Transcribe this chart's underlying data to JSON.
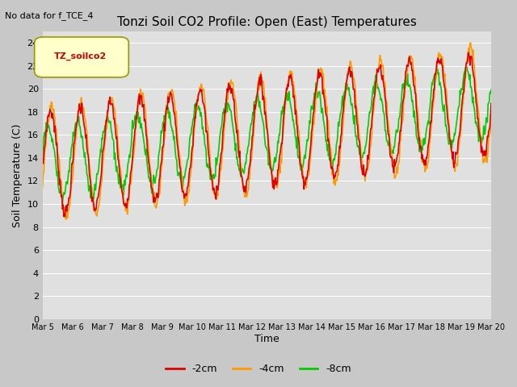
{
  "title": "Tonzi Soil CO2 Profile: Open (East) Temperatures",
  "subtitle": "No data for f_TCE_4",
  "ylabel": "Soil Temperature (C)",
  "xlabel": "Time",
  "legend_label": "TZ_soilco2",
  "ylim": [
    0,
    25
  ],
  "yticks": [
    0,
    2,
    4,
    6,
    8,
    10,
    12,
    14,
    16,
    18,
    20,
    22,
    24
  ],
  "x_labels": [
    "Mar 5",
    "Mar 6",
    "Mar 7",
    "Mar 8",
    "Mar 9",
    "Mar 10",
    "Mar 11",
    "Mar 12",
    "Mar 13",
    "Mar 14",
    "Mar 15",
    "Mar 16",
    "Mar 17",
    "Mar 18",
    "Mar 19",
    "Mar 20"
  ],
  "line_colors": {
    "m2cm": "#dd0000",
    "m4cm": "#ff9900",
    "m8cm": "#00cc00"
  },
  "line_widths": {
    "m2cm": 1.2,
    "m4cm": 1.2,
    "m8cm": 1.2
  },
  "legend_entries": [
    "-2cm",
    "-4cm",
    "-8cm"
  ],
  "fig_facecolor": "#c8c8c8",
  "plot_bg_color": "#e0e0e0",
  "grid_color": "#ffffff",
  "n_points": 720,
  "n_days": 15
}
